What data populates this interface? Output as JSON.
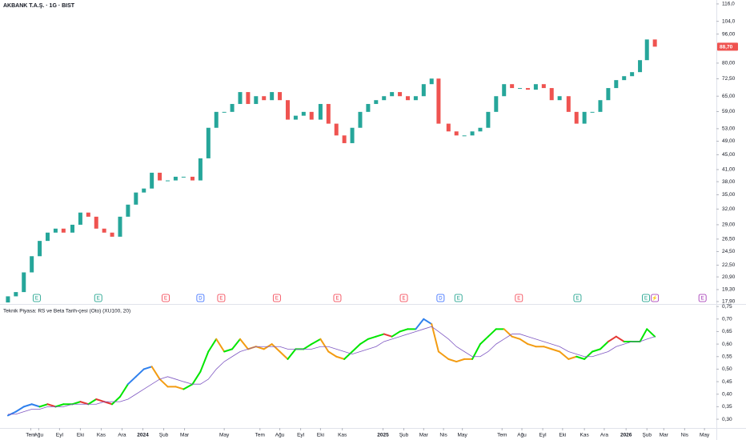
{
  "chart_data": [
    {
      "type": "candlestick",
      "title": "AKBANK T.A.Ş. · 1G · BIST",
      "log_scale": true,
      "up_color": "#26a69a",
      "down_color": "#ef5350",
      "xlim": [
        -4,
        718
      ],
      "ylim": [
        17.63,
        118.9
      ],
      "yticks": [
        {
          "value": 116,
          "label": "116,0"
        },
        {
          "value": 104,
          "label": "104,0"
        },
        {
          "value": 96,
          "label": "96,00"
        },
        {
          "value": 80,
          "label": "80,00"
        },
        {
          "value": 72.5,
          "label": "72,50"
        },
        {
          "value": 65,
          "label": "65,00"
        },
        {
          "value": 59,
          "label": "59,00"
        },
        {
          "value": 53,
          "label": "53,00"
        },
        {
          "value": 49,
          "label": "49,00"
        },
        {
          "value": 45,
          "label": "45,00"
        },
        {
          "value": 41,
          "label": "41,00"
        },
        {
          "value": 38,
          "label": "38,00"
        },
        {
          "value": 35,
          "label": "35,00"
        },
        {
          "value": 32,
          "label": "32,00"
        },
        {
          "value": 29,
          "label": "29,00"
        },
        {
          "value": 26.5,
          "label": "26,50"
        },
        {
          "value": 24.5,
          "label": "24,50"
        },
        {
          "value": 22.5,
          "label": "22,50"
        },
        {
          "value": 20.9,
          "label": "20,90"
        },
        {
          "value": 19.3,
          "label": "19,30"
        },
        {
          "value": 17.9,
          "label": "17,90"
        }
      ],
      "current_price": {
        "value": 88.7,
        "label": "88,70",
        "color": "#ef5350"
      },
      "x": [
        4,
        12,
        20,
        28,
        36,
        44,
        52,
        60,
        69,
        77,
        85,
        93,
        101,
        109,
        117,
        125,
        133,
        141,
        149,
        157,
        165,
        173,
        181,
        190,
        198,
        206,
        214,
        222,
        230,
        238,
        246,
        254,
        262,
        270,
        278,
        286,
        294,
        302,
        310,
        319,
        327,
        335,
        343,
        351,
        359,
        367,
        375,
        383,
        391,
        399,
        407,
        415,
        423,
        431,
        438,
        448,
        456,
        464,
        472,
        480,
        488,
        496,
        504,
        512,
        520,
        528,
        536,
        544,
        552,
        560,
        569,
        577,
        585,
        593,
        601,
        609,
        617,
        625,
        633,
        641,
        648,
        656
      ],
      "open": [
        17.8,
        18.5,
        19.0,
        21.5,
        23.8,
        26.2,
        27.6,
        28.3,
        27.6,
        29.0,
        31.3,
        30.5,
        28.3,
        27.6,
        26.9,
        30.5,
        32.9,
        35.5,
        36.4,
        40.2,
        38.3,
        38.3,
        39.2,
        39.2,
        38.3,
        44.0,
        53.3,
        58.9,
        58.9,
        61.9,
        66.7,
        61.9,
        65.0,
        63.4,
        66.7,
        63.4,
        56.1,
        57.5,
        58.9,
        56.1,
        61.9,
        54.7,
        50.8,
        48.4,
        53.3,
        58.9,
        61.9,
        63.4,
        65.0,
        66.7,
        65.0,
        63.4,
        65.0,
        70.1,
        72.6,
        54.7,
        52.1,
        50.8,
        50.8,
        52.1,
        53.3,
        58.9,
        65.0,
        70.1,
        68.4,
        68.4,
        67.7,
        70.1,
        68.4,
        63.4,
        65.0,
        58.9,
        54.7,
        58.9,
        58.9,
        63.4,
        68.4,
        71.9,
        73.7,
        75.6,
        81.5,
        92.8
      ],
      "close": [
        18.5,
        19.0,
        21.5,
        23.8,
        26.2,
        27.6,
        28.3,
        27.6,
        29.0,
        31.3,
        30.5,
        28.3,
        27.6,
        26.9,
        30.5,
        32.9,
        35.5,
        36.4,
        40.2,
        38.3,
        38.3,
        39.2,
        39.2,
        38.3,
        44.0,
        53.3,
        58.9,
        58.9,
        61.9,
        66.7,
        61.9,
        65.0,
        63.4,
        66.7,
        63.4,
        56.1,
        57.5,
        58.9,
        56.1,
        61.9,
        54.7,
        50.8,
        48.4,
        53.3,
        58.9,
        61.9,
        63.4,
        65.0,
        66.7,
        65.0,
        63.4,
        65.0,
        70.1,
        72.6,
        54.7,
        52.1,
        50.8,
        50.8,
        52.1,
        53.3,
        58.9,
        65.0,
        70.1,
        68.4,
        68.4,
        67.7,
        70.1,
        68.4,
        63.4,
        65.0,
        58.9,
        54.7,
        58.9,
        58.9,
        63.4,
        68.4,
        71.9,
        73.7,
        75.6,
        81.5,
        92.8,
        88.7
      ],
      "events": [
        {
          "label": "E",
          "x": 33,
          "color": "#089981"
        },
        {
          "label": "E",
          "x": 95,
          "color": "#089981"
        },
        {
          "label": "E",
          "x": 163,
          "color": "#f23645"
        },
        {
          "label": "D",
          "x": 198,
          "color": "#2962ff"
        },
        {
          "label": "E",
          "x": 219,
          "color": "#f23645"
        },
        {
          "label": "E",
          "x": 275,
          "color": "#f23645"
        },
        {
          "label": "E",
          "x": 336,
          "color": "#f23645"
        },
        {
          "label": "E",
          "x": 403,
          "color": "#f23645"
        },
        {
          "label": "D",
          "x": 440,
          "color": "#2962ff"
        },
        {
          "label": "E",
          "x": 458,
          "color": "#089981"
        },
        {
          "label": "E",
          "x": 519,
          "color": "#f23645"
        },
        {
          "label": "E",
          "x": 578,
          "color": "#089981"
        },
        {
          "label": "E",
          "x": 647,
          "color": "#089981"
        },
        {
          "label": "⚡",
          "x": 656,
          "color": "#9c27b0"
        },
        {
          "label": "E",
          "x": 704,
          "color": "#9c27b0"
        }
      ]
    },
    {
      "type": "line",
      "title": "Teknik Piyasa: RS ve Beta Tarih-çesi (Oto) (XU100, 20)",
      "xlim": [
        -4,
        718
      ],
      "ylim": [
        0.265,
        0.76
      ],
      "yticks": [
        {
          "value": 0.75,
          "label": "0,75"
        },
        {
          "value": 0.7,
          "label": "0,70"
        },
        {
          "value": 0.65,
          "label": "0,65"
        },
        {
          "value": 0.6,
          "label": "0,60"
        },
        {
          "value": 0.55,
          "label": "0,55"
        },
        {
          "value": 0.5,
          "label": "0,50"
        },
        {
          "value": 0.45,
          "label": "0,45"
        },
        {
          "value": 0.4,
          "label": "0,40"
        },
        {
          "value": 0.35,
          "label": "0,35"
        },
        {
          "value": 0.3,
          "label": "0,30"
        }
      ],
      "xticks": [
        {
          "value": 27,
          "label": "Tem"
        },
        {
          "value": 35,
          "label": "Ağu"
        },
        {
          "value": 56,
          "label": "Eyl"
        },
        {
          "value": 77,
          "label": "Eki"
        },
        {
          "value": 98,
          "label": "Kas"
        },
        {
          "value": 119,
          "label": "Ara"
        },
        {
          "value": 140,
          "label": "2024"
        },
        {
          "value": 161,
          "label": "Şub"
        },
        {
          "value": 182,
          "label": "Mar"
        },
        {
          "value": 222,
          "label": "May"
        },
        {
          "value": 258,
          "label": "Tem"
        },
        {
          "value": 278,
          "label": "Ağu"
        },
        {
          "value": 299,
          "label": "Eyl"
        },
        {
          "value": 319,
          "label": "Eki"
        },
        {
          "value": 341,
          "label": "Kas"
        },
        {
          "value": 382,
          "label": "2025"
        },
        {
          "value": 403,
          "label": "Şub"
        },
        {
          "value": 423,
          "label": "Mar"
        },
        {
          "value": 443,
          "label": "Nis"
        },
        {
          "value": 462,
          "label": "May"
        },
        {
          "value": 502,
          "label": "Tem"
        },
        {
          "value": 522,
          "label": "Ağu"
        },
        {
          "value": 543,
          "label": "Eyl"
        },
        {
          "value": 563,
          "label": "Eki"
        },
        {
          "value": 585,
          "label": "Kas"
        },
        {
          "value": 605,
          "label": "Ara"
        },
        {
          "value": 627,
          "label": "2026"
        },
        {
          "value": 648,
          "label": "Şub"
        },
        {
          "value": 665,
          "label": "Mar"
        },
        {
          "value": 686,
          "label": "Nis"
        },
        {
          "value": 706,
          "label": "May"
        }
      ],
      "x": [
        4,
        12,
        20,
        28,
        36,
        44,
        52,
        60,
        69,
        77,
        85,
        93,
        101,
        109,
        117,
        125,
        133,
        141,
        149,
        157,
        165,
        173,
        181,
        190,
        198,
        206,
        214,
        222,
        230,
        238,
        246,
        254,
        262,
        270,
        278,
        286,
        294,
        302,
        310,
        319,
        327,
        335,
        343,
        351,
        359,
        367,
        375,
        383,
        391,
        399,
        407,
        415,
        423,
        431,
        438,
        448,
        456,
        464,
        472,
        480,
        488,
        496,
        504,
        512,
        520,
        528,
        536,
        544,
        552,
        560,
        569,
        577,
        585,
        593,
        601,
        609,
        617,
        625,
        633,
        641,
        648,
        656
      ],
      "series": [
        {
          "values": [
            0.315,
            0.33,
            0.35,
            0.36,
            0.35,
            0.36,
            0.35,
            0.36,
            0.36,
            0.37,
            0.36,
            0.38,
            0.37,
            0.36,
            0.39,
            0.44,
            0.47,
            0.5,
            0.51,
            0.46,
            0.43,
            0.43,
            0.42,
            0.44,
            0.49,
            0.57,
            0.62,
            0.57,
            0.58,
            0.62,
            0.58,
            0.59,
            0.58,
            0.6,
            0.57,
            0.54,
            0.58,
            0.58,
            0.6,
            0.62,
            0.57,
            0.55,
            0.54,
            0.57,
            0.6,
            0.62,
            0.63,
            0.64,
            0.63,
            0.65,
            0.66,
            0.66,
            0.7,
            0.68,
            0.57,
            0.54,
            0.53,
            0.54,
            0.54,
            0.6,
            0.63,
            0.66,
            0.66,
            0.63,
            0.62,
            0.6,
            0.59,
            0.59,
            0.58,
            0.57,
            0.54,
            0.55,
            0.54,
            0.57,
            0.58,
            0.61,
            0.63,
            0.61,
            0.61,
            0.61,
            0.66,
            0.63
          ],
          "colors": [
            "#2f80ed",
            "#2f80ed",
            "#2f80ed",
            "#2f80ed",
            "#2f80ed",
            "#00e600",
            "#e53935",
            "#00e600",
            "#00e600",
            "#00e600",
            "#e53935",
            "#00e600",
            "#e53935",
            "#e53935",
            "#00e600",
            "#00e600",
            "#2f80ed",
            "#2f80ed",
            "#2f80ed",
            "#f39c12",
            "#f39c12",
            "#f39c12",
            "#f39c12",
            "#00e600",
            "#00e600",
            "#00e600",
            "#00e600",
            "#f39c12",
            "#00e600",
            "#00e600",
            "#f39c12",
            "#f39c12",
            "#f39c12",
            "#f39c12",
            "#f39c12",
            "#f39c12",
            "#00e600",
            "#00e600",
            "#00e600",
            "#00e600",
            "#f39c12",
            "#f39c12",
            "#f39c12",
            "#00e600",
            "#00e600",
            "#00e600",
            "#00e600",
            "#00e600",
            "#e53935",
            "#00e600",
            "#00e600",
            "#00e600",
            "#2f80ed",
            "#2f80ed",
            "#f39c12",
            "#f39c12",
            "#f39c12",
            "#f39c12",
            "#f39c12",
            "#00e600",
            "#00e600",
            "#00e600",
            "#00e600",
            "#f39c12",
            "#f39c12",
            "#f39c12",
            "#f39c12",
            "#f39c12",
            "#f39c12",
            "#f39c12",
            "#f39c12",
            "#f39c12",
            "#00e600",
            "#00e600",
            "#00e600",
            "#00e600",
            "#e53935",
            "#e53935",
            "#00e600",
            "#00e600",
            "#00e600",
            "#00e600"
          ]
        },
        {
          "color": "#7e57c2",
          "values": [
            0.32,
            0.32,
            0.33,
            0.34,
            0.34,
            0.35,
            0.35,
            0.35,
            0.36,
            0.36,
            0.36,
            0.36,
            0.37,
            0.37,
            0.37,
            0.38,
            0.4,
            0.42,
            0.44,
            0.46,
            0.47,
            0.46,
            0.45,
            0.44,
            0.44,
            0.46,
            0.5,
            0.53,
            0.55,
            0.57,
            0.58,
            0.59,
            0.59,
            0.59,
            0.59,
            0.58,
            0.58,
            0.58,
            0.58,
            0.59,
            0.59,
            0.58,
            0.57,
            0.56,
            0.57,
            0.58,
            0.59,
            0.61,
            0.62,
            0.63,
            0.64,
            0.65,
            0.66,
            0.67,
            0.65,
            0.62,
            0.59,
            0.57,
            0.55,
            0.55,
            0.57,
            0.6,
            0.62,
            0.64,
            0.64,
            0.63,
            0.62,
            0.61,
            0.6,
            0.59,
            0.57,
            0.56,
            0.55,
            0.55,
            0.56,
            0.57,
            0.59,
            0.6,
            0.61,
            0.61,
            0.62,
            0.63
          ]
        }
      ]
    }
  ]
}
